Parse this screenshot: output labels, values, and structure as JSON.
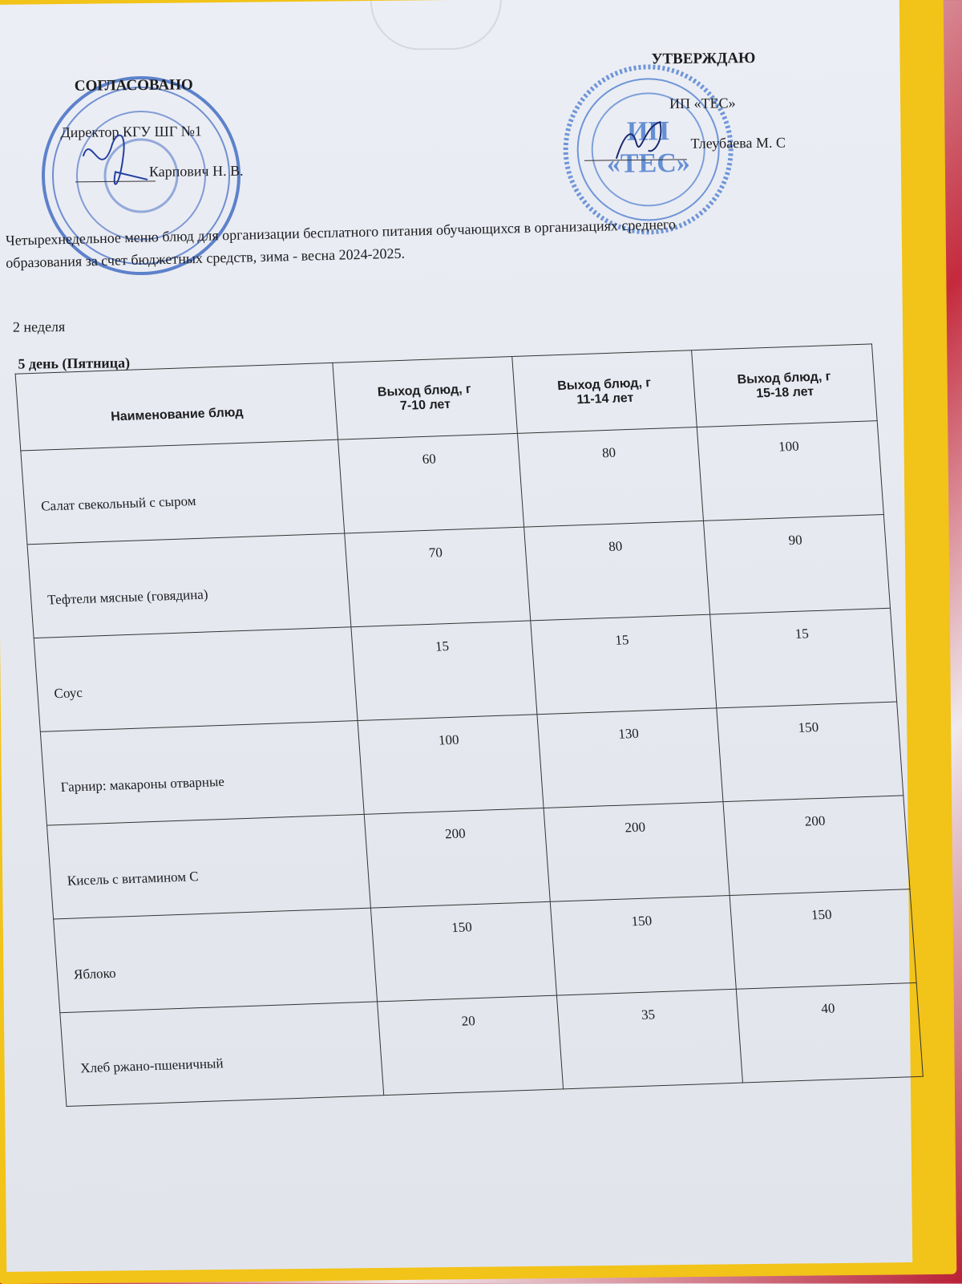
{
  "approval_left": {
    "heading": "СОГЛАСОВАНО",
    "position": "Директор КГУ ШГ №1",
    "name": "Карпович Н. В."
  },
  "approval_right": {
    "heading": "УТВЕРЖДАЮ",
    "organization": "ИП «ТЕС»",
    "name": "Тлеубаева М. С"
  },
  "stamp_right_lettering": "ИП «ТЕС»",
  "title_line1": "Четырехнедельное меню блюд для организации бесплатного питания обучающихся в организациях среднего",
  "title_line2": "образования за счет бюджетных средств, зима - весна 2024-2025.",
  "week": "2 неделя",
  "day": "5 день (Пятница)",
  "table": {
    "headers": [
      {
        "line1": "Наименование блюд",
        "line2": ""
      },
      {
        "line1": "Выход блюд, г",
        "line2": "7-10 лет"
      },
      {
        "line1": "Выход блюд, г",
        "line2": "11-14 лет"
      },
      {
        "line1": "Выход блюд, г",
        "line2": "15-18 лет"
      }
    ],
    "rows": [
      {
        "name": "Салат свекольный с сыром",
        "v1": "60",
        "v2": "80",
        "v3": "100"
      },
      {
        "name": "Тефтели мясные (говядина)",
        "v1": "70",
        "v2": "80",
        "v3": "90"
      },
      {
        "name": "Соус",
        "v1": "15",
        "v2": "15",
        "v3": "15"
      },
      {
        "name": "Гарнир: макароны отварные",
        "v1": "100",
        "v2": "130",
        "v3": "150"
      },
      {
        "name": "Кисель с витамином С",
        "v1": "200",
        "v2": "200",
        "v3": "200"
      },
      {
        "name": "Яблоко",
        "v1": "150",
        "v2": "150",
        "v3": "150"
      },
      {
        "name": "Хлеб ржано-пшеничный",
        "v1": "20",
        "v2": "35",
        "v3": "40"
      }
    ]
  },
  "colors": {
    "frame": "#f2c318",
    "stamp": "#2f5fb8",
    "paper": "#e8eaf1"
  }
}
